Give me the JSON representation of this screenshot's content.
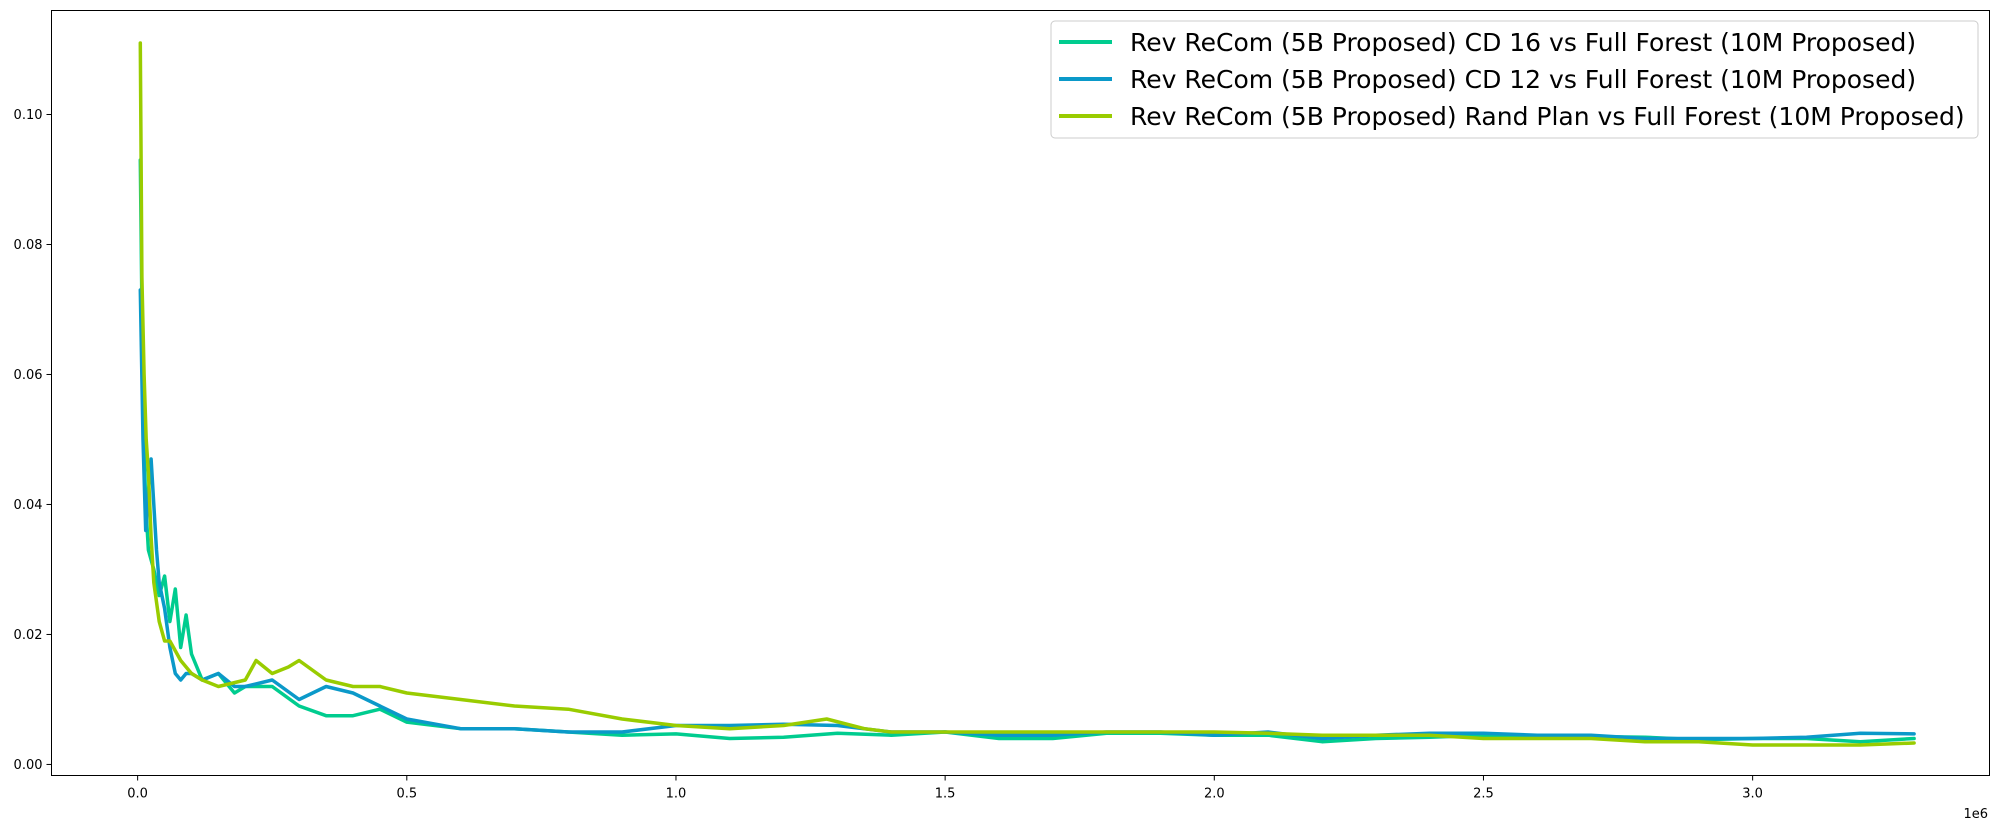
{
  "chart_data": {
    "type": "line",
    "title": "",
    "xlabel": "",
    "ylabel": "",
    "x_offset_label": "1e6",
    "xlim": [
      -0.16,
      3.44
    ],
    "ylim": [
      -0.0017,
      0.116
    ],
    "x_ticks": [
      0.0,
      0.5,
      1.0,
      1.5,
      2.0,
      2.5,
      3.0
    ],
    "x_tick_labels": [
      "0.0",
      "0.5",
      "1.0",
      "1.5",
      "2.0",
      "2.5",
      "3.0"
    ],
    "y_ticks": [
      0.0,
      0.02,
      0.04,
      0.06,
      0.08,
      0.1
    ],
    "y_tick_labels": [
      "0.00",
      "0.02",
      "0.04",
      "0.06",
      "0.08",
      "0.10"
    ],
    "legend_position": "upper right",
    "series": [
      {
        "name": "Rev ReCom (5B Proposed) CD 16 vs Full Forest (10M Proposed)",
        "color": "#00cc8f",
        "x": [
          0.005,
          0.01,
          0.015,
          0.02,
          0.03,
          0.04,
          0.05,
          0.06,
          0.07,
          0.08,
          0.09,
          0.1,
          0.12,
          0.15,
          0.18,
          0.2,
          0.25,
          0.3,
          0.35,
          0.4,
          0.45,
          0.5,
          0.6,
          0.7,
          0.8,
          0.9,
          1.0,
          1.1,
          1.2,
          1.3,
          1.4,
          1.5,
          1.6,
          1.7,
          1.8,
          1.9,
          2.0,
          2.1,
          2.2,
          2.3,
          2.4,
          2.5,
          2.6,
          2.7,
          2.8,
          2.9,
          3.0,
          3.1,
          3.2,
          3.3
        ],
        "y": [
          0.093,
          0.055,
          0.04,
          0.033,
          0.03,
          0.026,
          0.029,
          0.022,
          0.027,
          0.018,
          0.023,
          0.017,
          0.013,
          0.014,
          0.011,
          0.012,
          0.012,
          0.009,
          0.0075,
          0.0075,
          0.0085,
          0.0065,
          0.0055,
          0.0055,
          0.005,
          0.0045,
          0.0047,
          0.004,
          0.0042,
          0.0048,
          0.0045,
          0.005,
          0.004,
          0.004,
          0.0048,
          0.0048,
          0.0045,
          0.0045,
          0.0035,
          0.004,
          0.0042,
          0.0045,
          0.0045,
          0.0043,
          0.0042,
          0.0038,
          0.004,
          0.004,
          0.0035,
          0.004
        ]
      },
      {
        "name": "Rev ReCom (5B Proposed) CD 12 vs Full Forest (10M Proposed)",
        "color": "#0b99c9",
        "x": [
          0.005,
          0.01,
          0.015,
          0.02,
          0.025,
          0.03,
          0.035,
          0.04,
          0.05,
          0.06,
          0.07,
          0.08,
          0.09,
          0.1,
          0.12,
          0.15,
          0.18,
          0.2,
          0.25,
          0.3,
          0.35,
          0.4,
          0.45,
          0.5,
          0.6,
          0.7,
          0.8,
          0.9,
          1.0,
          1.1,
          1.2,
          1.3,
          1.4,
          1.5,
          1.6,
          1.7,
          1.8,
          1.9,
          2.0,
          2.1,
          2.2,
          2.3,
          2.4,
          2.5,
          2.6,
          2.7,
          2.8,
          2.9,
          3.0,
          3.1,
          3.2,
          3.3
        ],
        "y": [
          0.073,
          0.05,
          0.036,
          0.042,
          0.047,
          0.04,
          0.033,
          0.028,
          0.024,
          0.018,
          0.014,
          0.013,
          0.014,
          0.014,
          0.013,
          0.014,
          0.012,
          0.012,
          0.013,
          0.01,
          0.012,
          0.011,
          0.009,
          0.007,
          0.0055,
          0.0055,
          0.005,
          0.005,
          0.006,
          0.006,
          0.0062,
          0.006,
          0.005,
          0.005,
          0.0045,
          0.0045,
          0.005,
          0.005,
          0.0045,
          0.005,
          0.004,
          0.0045,
          0.0048,
          0.0048,
          0.0045,
          0.0045,
          0.004,
          0.004,
          0.004,
          0.0042,
          0.0048,
          0.0047
        ]
      },
      {
        "name": "Rev ReCom (5B Proposed) Rand Plan vs Full Forest (10M Proposed)",
        "color": "#99cc00",
        "x": [
          0.005,
          0.008,
          0.012,
          0.016,
          0.02,
          0.025,
          0.03,
          0.04,
          0.05,
          0.06,
          0.08,
          0.1,
          0.12,
          0.15,
          0.2,
          0.22,
          0.25,
          0.28,
          0.3,
          0.35,
          0.4,
          0.45,
          0.5,
          0.6,
          0.7,
          0.8,
          0.9,
          1.0,
          1.1,
          1.2,
          1.28,
          1.35,
          1.4,
          1.5,
          1.6,
          1.7,
          1.8,
          1.9,
          2.0,
          2.1,
          2.2,
          2.3,
          2.4,
          2.5,
          2.6,
          2.7,
          2.8,
          2.9,
          3.0,
          3.1,
          3.2,
          3.3
        ],
        "y": [
          0.111,
          0.075,
          0.06,
          0.05,
          0.045,
          0.035,
          0.028,
          0.022,
          0.019,
          0.019,
          0.016,
          0.014,
          0.013,
          0.012,
          0.013,
          0.016,
          0.014,
          0.015,
          0.016,
          0.013,
          0.012,
          0.012,
          0.011,
          0.01,
          0.009,
          0.0085,
          0.007,
          0.006,
          0.0055,
          0.006,
          0.007,
          0.0055,
          0.005,
          0.005,
          0.005,
          0.005,
          0.005,
          0.005,
          0.005,
          0.0048,
          0.0045,
          0.0045,
          0.0045,
          0.004,
          0.004,
          0.004,
          0.0035,
          0.0035,
          0.003,
          0.003,
          0.003,
          0.0033
        ]
      }
    ]
  }
}
